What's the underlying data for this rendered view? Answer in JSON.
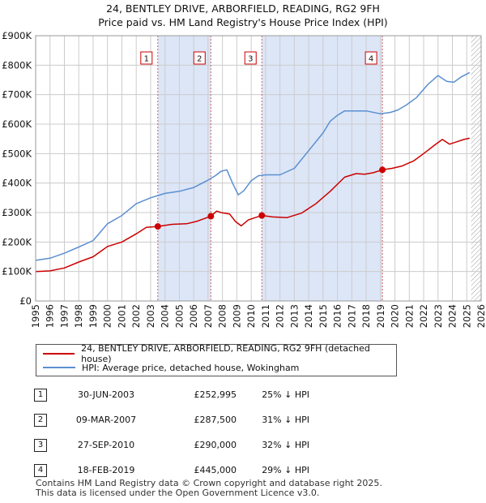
{
  "header": {
    "title": "24, BENTLEY DRIVE, ARBORFIELD, READING, RG2 9FH",
    "subtitle": "Price paid vs. HM Land Registry's House Price Index (HPI)"
  },
  "chart_data": {
    "type": "line",
    "title": "24, BENTLEY DRIVE, ARBORFIELD, READING, RG2 9FH",
    "subtitle": "Price paid vs. HM Land Registry's House Price Index (HPI)",
    "xlim": [
      1995,
      2026
    ],
    "ylim": [
      0,
      900000
    ],
    "x_ticks": [
      "1995",
      "1996",
      "1997",
      "1998",
      "1999",
      "2000",
      "2001",
      "2002",
      "2003",
      "2004",
      "2005",
      "2006",
      "2007",
      "2008",
      "2009",
      "2010",
      "2011",
      "2012",
      "2013",
      "2014",
      "2015",
      "2016",
      "2017",
      "2018",
      "2019",
      "2020",
      "2021",
      "2022",
      "2023",
      "2024",
      "2025",
      "2026"
    ],
    "y_ticks": [
      {
        "value": 0,
        "label": "£0"
      },
      {
        "value": 100000,
        "label": "£100K"
      },
      {
        "value": 200000,
        "label": "£200K"
      },
      {
        "value": 300000,
        "label": "£300K"
      },
      {
        "value": 400000,
        "label": "£400K"
      },
      {
        "value": 500000,
        "label": "£500K"
      },
      {
        "value": 600000,
        "label": "£600K"
      },
      {
        "value": 700000,
        "label": "£700K"
      },
      {
        "value": 800000,
        "label": "£800K"
      },
      {
        "value": 900000,
        "label": "£900K"
      }
    ],
    "grid": true,
    "legend_position": "bottom",
    "series": [
      {
        "name": "24, BENTLEY DRIVE, ARBORFIELD, READING, RG2 9FH (detached house)",
        "color": "#cc0000",
        "points": [
          [
            1995.0,
            100000
          ],
          [
            1996.0,
            102000
          ],
          [
            1997.0,
            112000
          ],
          [
            1998.0,
            132000
          ],
          [
            1999.0,
            150000
          ],
          [
            2000.0,
            185000
          ],
          [
            2001.0,
            200000
          ],
          [
            2002.0,
            228000
          ],
          [
            2002.7,
            250000
          ],
          [
            2003.5,
            252995
          ],
          [
            2004.5,
            260000
          ],
          [
            2005.5,
            262000
          ],
          [
            2006.2,
            270000
          ],
          [
            2007.19,
            287500
          ],
          [
            2007.6,
            305000
          ],
          [
            2007.9,
            300000
          ],
          [
            2008.5,
            295000
          ],
          [
            2008.9,
            270000
          ],
          [
            2009.3,
            255000
          ],
          [
            2009.8,
            275000
          ],
          [
            2010.74,
            290000
          ],
          [
            2011.5,
            285000
          ],
          [
            2012.5,
            283000
          ],
          [
            2013.5,
            298000
          ],
          [
            2014.5,
            330000
          ],
          [
            2015.5,
            372000
          ],
          [
            2016.5,
            420000
          ],
          [
            2017.3,
            432000
          ],
          [
            2017.9,
            430000
          ],
          [
            2018.5,
            435000
          ],
          [
            2019.13,
            445000
          ],
          [
            2019.8,
            450000
          ],
          [
            2020.5,
            458000
          ],
          [
            2021.3,
            475000
          ],
          [
            2022.0,
            500000
          ],
          [
            2022.8,
            530000
          ],
          [
            2023.3,
            548000
          ],
          [
            2023.8,
            532000
          ],
          [
            2024.3,
            540000
          ],
          [
            2024.8,
            548000
          ],
          [
            2025.2,
            552000
          ]
        ]
      },
      {
        "name": "HPI: Average price, detached house, Wokingham",
        "color": "#5b8fd0",
        "points": [
          [
            1995.0,
            138000
          ],
          [
            1996.0,
            145000
          ],
          [
            1997.0,
            162000
          ],
          [
            1998.0,
            183000
          ],
          [
            1999.0,
            205000
          ],
          [
            2000.0,
            262000
          ],
          [
            2001.0,
            290000
          ],
          [
            2002.0,
            330000
          ],
          [
            2003.0,
            350000
          ],
          [
            2004.0,
            365000
          ],
          [
            2005.0,
            372000
          ],
          [
            2006.0,
            385000
          ],
          [
            2007.0,
            410000
          ],
          [
            2007.5,
            425000
          ],
          [
            2007.9,
            440000
          ],
          [
            2008.3,
            445000
          ],
          [
            2008.7,
            400000
          ],
          [
            2009.1,
            360000
          ],
          [
            2009.5,
            375000
          ],
          [
            2010.0,
            408000
          ],
          [
            2010.5,
            425000
          ],
          [
            2011.0,
            428000
          ],
          [
            2012.0,
            428000
          ],
          [
            2013.0,
            450000
          ],
          [
            2014.0,
            510000
          ],
          [
            2015.0,
            570000
          ],
          [
            2015.5,
            610000
          ],
          [
            2016.0,
            630000
          ],
          [
            2016.5,
            645000
          ],
          [
            2017.0,
            645000
          ],
          [
            2018.0,
            645000
          ],
          [
            2019.0,
            635000
          ],
          [
            2019.7,
            640000
          ],
          [
            2020.2,
            648000
          ],
          [
            2020.8,
            665000
          ],
          [
            2021.5,
            690000
          ],
          [
            2022.3,
            735000
          ],
          [
            2023.0,
            765000
          ],
          [
            2023.6,
            745000
          ],
          [
            2024.1,
            742000
          ],
          [
            2024.6,
            760000
          ],
          [
            2025.2,
            775000
          ]
        ]
      }
    ],
    "sales": [
      {
        "marker": "1",
        "x": 2003.5,
        "date": "30-JUN-2003",
        "price": 252995,
        "price_label": "£252,995",
        "hpi_diff": "25% ↓ HPI"
      },
      {
        "marker": "2",
        "x": 2007.19,
        "date": "09-MAR-2007",
        "price": 287500,
        "price_label": "£287,500",
        "hpi_diff": "31% ↓ HPI"
      },
      {
        "marker": "3",
        "x": 2010.74,
        "date": "27-SEP-2010",
        "price": 290000,
        "price_label": "£290,000",
        "hpi_diff": "32% ↓ HPI"
      },
      {
        "marker": "4",
        "x": 2019.13,
        "date": "18-FEB-2019",
        "price": 445000,
        "price_label": "£445,000",
        "hpi_diff": "29% ↓ HPI"
      }
    ],
    "shaded_periods": [
      [
        2003.5,
        2007.19
      ],
      [
        2010.74,
        2019.13
      ]
    ],
    "forecast_start": 2025.3
  },
  "legend": {
    "property_label": "24, BENTLEY DRIVE, ARBORFIELD, READING, RG2 9FH (detached house)",
    "hpi_label": "HPI: Average price, detached house, Wokingham"
  },
  "footer": {
    "line1": "Contains HM Land Registry data © Crown copyright and database right 2025.",
    "line2": "This data is licensed under the Open Government Licence v3.0."
  },
  "colors": {
    "property_line": "#cc0000",
    "hpi_line": "#5b8fd0",
    "shade": "#dce6f7",
    "grid": "#cccccc"
  }
}
